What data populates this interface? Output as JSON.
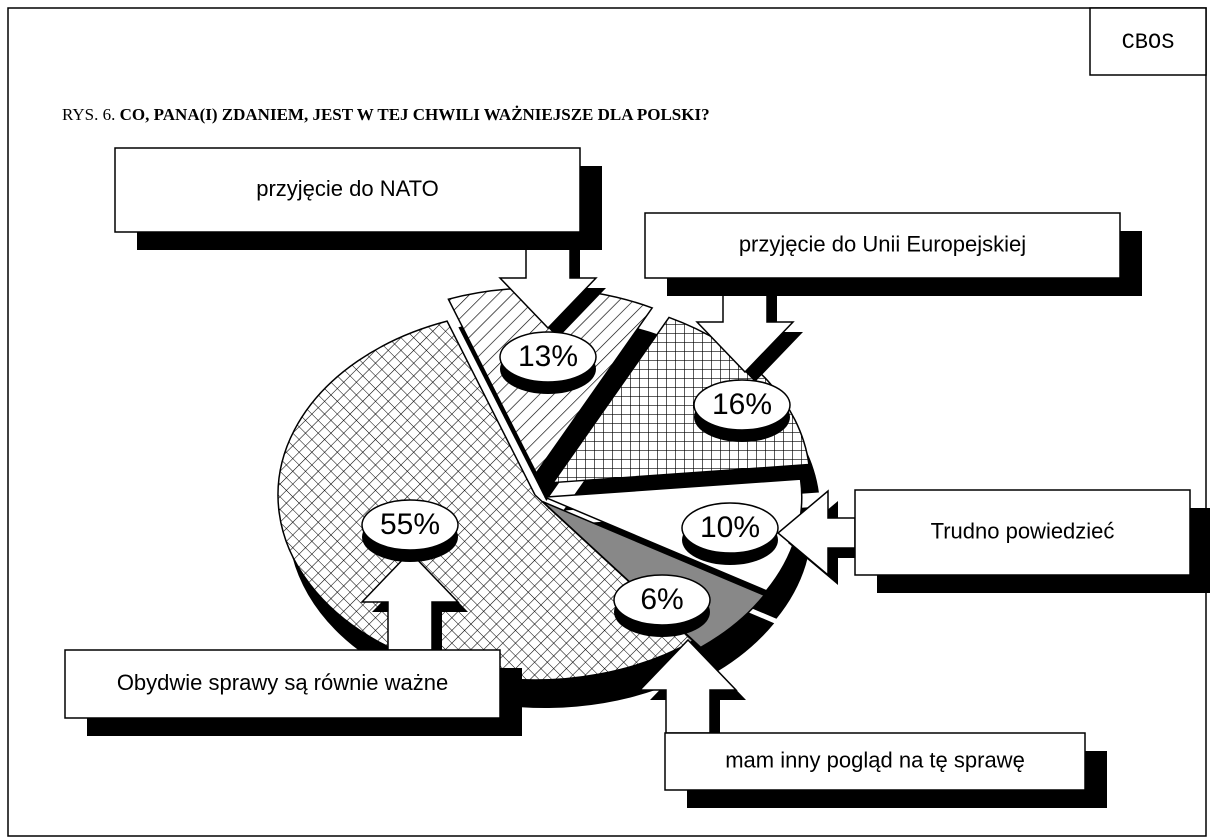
{
  "chart_data": {
    "type": "pie",
    "corner_label": "CBOS",
    "figure_label": "RYS. 6.",
    "title": "CO, PANA(I) ZDANIEM, JEST W TEJ CHWILI WAŻNIEJSZE DLA POLSKI?",
    "categories": [
      "przyjęcie do NATO",
      "przyjęcie do Unii Europejskiej",
      "Trudno powiedzieć",
      "mam inny pogląd na tę sprawę",
      "Obydwie sprawy są równie ważne"
    ],
    "values": [
      13,
      16,
      10,
      6,
      55
    ],
    "value_labels": [
      "13%",
      "16%",
      "10%",
      "6%",
      "55%"
    ],
    "patterns": [
      "diagonal",
      "grid",
      "none",
      "gray",
      "crosshatch"
    ]
  }
}
